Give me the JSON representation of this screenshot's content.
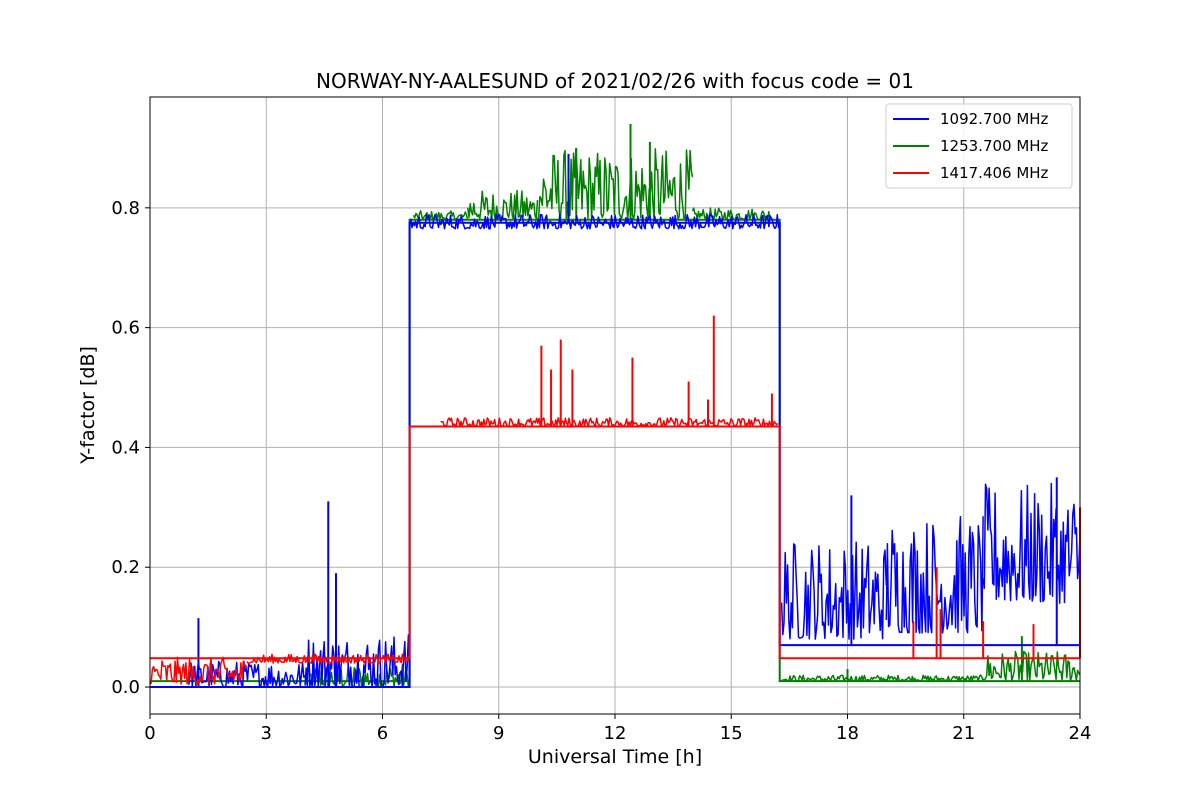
{
  "chart_data": {
    "type": "line",
    "title": "NORWAY-NY-AALESUND of 2021/02/26 with focus code = 01",
    "xlabel": "Universal Time [h]",
    "ylabel": "Y-factor [dB]",
    "xlim": [
      0,
      24
    ],
    "ylim": [
      -0.045,
      0.985
    ],
    "xticks": [
      0,
      3,
      6,
      9,
      12,
      15,
      18,
      21,
      24
    ],
    "xtick_labels": [
      "0",
      "3",
      "6",
      "9",
      "12",
      "15",
      "18",
      "21",
      "24"
    ],
    "yticks": [
      0.0,
      0.2,
      0.4,
      0.6,
      0.8
    ],
    "ytick_labels": [
      "0.0",
      "0.2",
      "0.4",
      "0.6",
      "0.8"
    ],
    "grid": true,
    "legend_position": "top-right",
    "series": [
      {
        "name": "1092.700 MHz",
        "color": "#0000ff",
        "baseline": [
          [
            0,
            0.0
          ],
          [
            6.7,
            0.0
          ],
          [
            6.7,
            0.775
          ],
          [
            16.25,
            0.775
          ],
          [
            16.25,
            0.07
          ],
          [
            24,
            0.07
          ]
        ],
        "segments": [
          {
            "x0": 1.0,
            "x1": 4.0,
            "min": 0.0,
            "max": 0.045
          },
          {
            "x0": 4.0,
            "x1": 6.7,
            "min": 0.0,
            "max": 0.09
          },
          {
            "x0": 6.7,
            "x1": 16.25,
            "min": 0.765,
            "max": 0.79
          },
          {
            "x0": 16.3,
            "x1": 19.0,
            "min": 0.08,
            "max": 0.25
          },
          {
            "x0": 19.0,
            "x1": 21.5,
            "min": 0.09,
            "max": 0.29
          },
          {
            "x0": 21.5,
            "x1": 24.0,
            "min": 0.14,
            "max": 0.34
          }
        ],
        "spikes": [
          [
            1.25,
            0.115
          ],
          [
            4.6,
            0.31
          ],
          [
            4.8,
            0.19
          ],
          [
            10.8,
            0.89
          ],
          [
            18.1,
            0.32
          ],
          [
            23.4,
            0.35
          ]
        ]
      },
      {
        "name": "1253.700 MHz",
        "color": "#008000",
        "baseline": [
          [
            0,
            0.01
          ],
          [
            6.7,
            0.01
          ],
          [
            6.7,
            0.78
          ],
          [
            16.25,
            0.78
          ],
          [
            16.25,
            0.01
          ],
          [
            24,
            0.01
          ]
        ],
        "segments": [
          {
            "x0": 4.0,
            "x1": 6.7,
            "min": 0.0,
            "max": 0.04
          },
          {
            "x0": 6.8,
            "x1": 8.2,
            "min": 0.78,
            "max": 0.795
          },
          {
            "x0": 8.2,
            "x1": 10.0,
            "min": 0.78,
            "max": 0.83
          },
          {
            "x0": 10.0,
            "x1": 14.0,
            "min": 0.78,
            "max": 0.9
          },
          {
            "x0": 14.0,
            "x1": 16.0,
            "min": 0.78,
            "max": 0.8
          },
          {
            "x0": 16.3,
            "x1": 21.5,
            "min": 0.01,
            "max": 0.02
          },
          {
            "x0": 21.5,
            "x1": 24.0,
            "min": 0.01,
            "max": 0.06
          }
        ],
        "spikes": [
          [
            12.4,
            0.94
          ],
          [
            11.0,
            0.9
          ],
          [
            12.9,
            0.91
          ],
          [
            22.5,
            0.085
          ],
          [
            18.0,
            0.03
          ]
        ]
      },
      {
        "name": "1417.406 MHz",
        "color": "#ff0000",
        "baseline": [
          [
            0,
            0.048
          ],
          [
            6.7,
            0.048
          ],
          [
            6.7,
            0.435
          ],
          [
            16.25,
            0.435
          ],
          [
            16.25,
            0.048
          ],
          [
            24,
            0.048
          ]
        ],
        "segments": [
          {
            "x0": 0.0,
            "x1": 2.5,
            "min": 0.005,
            "max": 0.05
          },
          {
            "x0": 2.5,
            "x1": 6.7,
            "min": 0.04,
            "max": 0.055
          },
          {
            "x0": 7.5,
            "x1": 16.2,
            "min": 0.435,
            "max": 0.45
          }
        ],
        "spikes": [
          [
            10.1,
            0.57
          ],
          [
            10.6,
            0.58
          ],
          [
            10.9,
            0.53
          ],
          [
            10.35,
            0.53
          ],
          [
            12.45,
            0.55
          ],
          [
            14.55,
            0.62
          ],
          [
            14.4,
            0.48
          ],
          [
            13.9,
            0.51
          ],
          [
            16.05,
            0.49
          ],
          [
            20.3,
            0.2
          ],
          [
            20.4,
            0.13
          ],
          [
            19.7,
            0.11
          ],
          [
            21.5,
            0.11
          ],
          [
            22.8,
            0.105
          ],
          [
            24.0,
            0.3
          ]
        ]
      }
    ]
  }
}
